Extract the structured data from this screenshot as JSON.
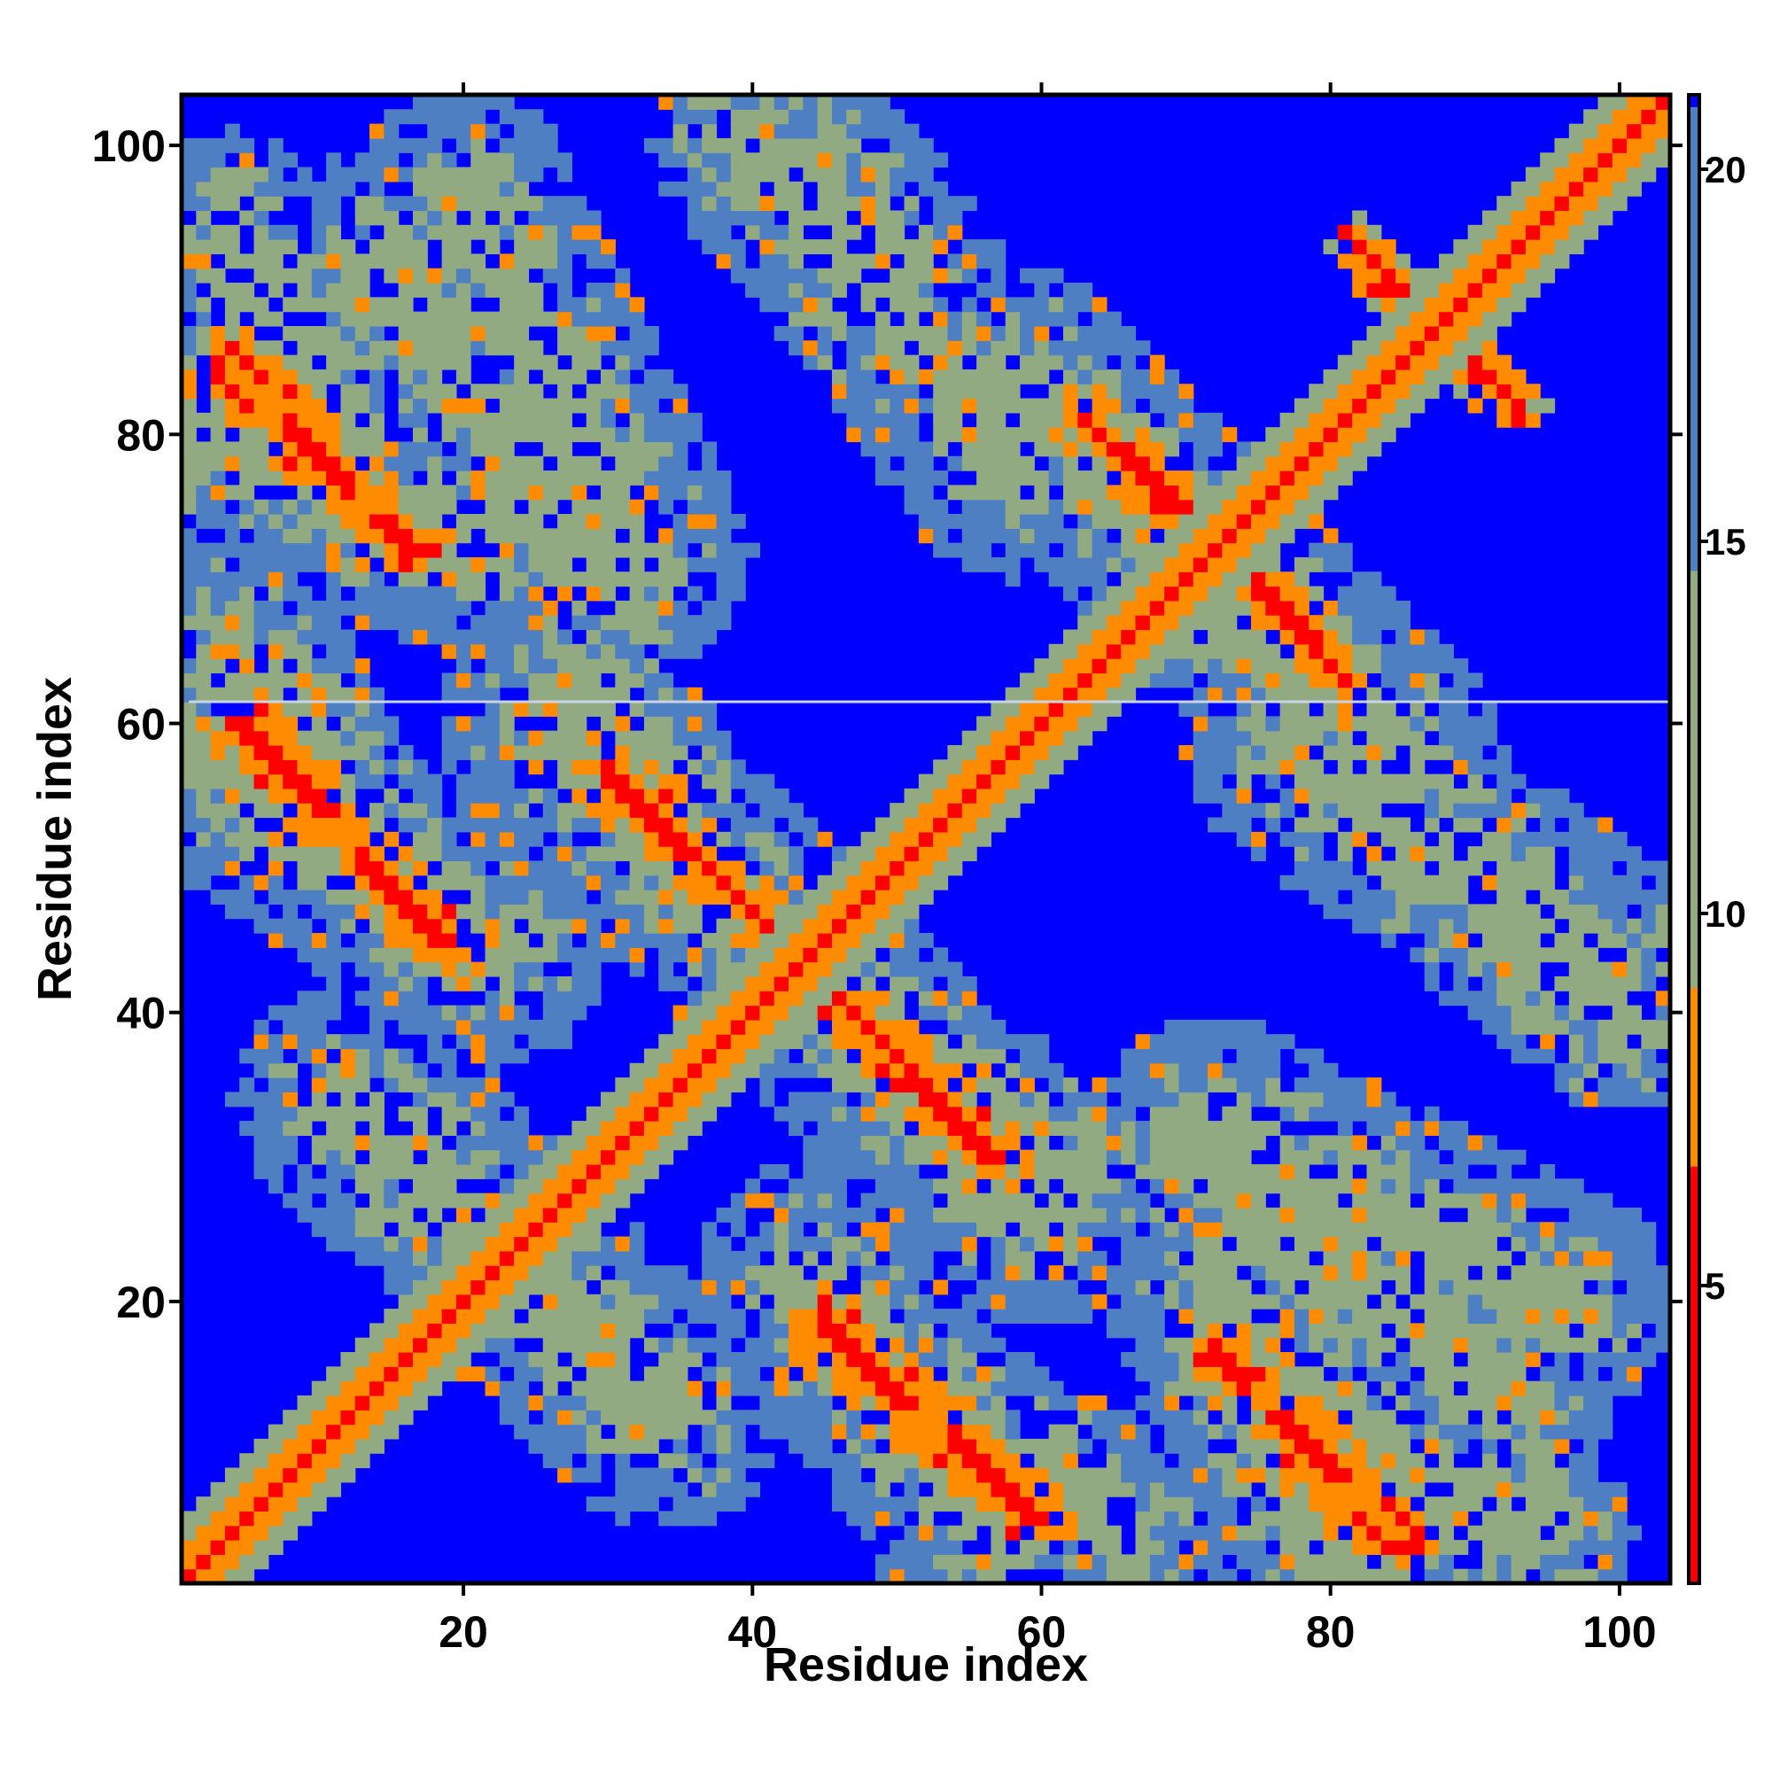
{
  "chart_data": {
    "type": "heatmap",
    "title": "",
    "xlabel": "Residue index",
    "ylabel": "Residue index",
    "n_residues": 103,
    "xlim": [
      1,
      103
    ],
    "ylim": [
      1,
      103
    ],
    "x_ticks": [
      20,
      40,
      60,
      80,
      100
    ],
    "y_ticks": [
      20,
      40,
      60,
      80,
      100
    ],
    "colorbar": {
      "ticks": [
        5,
        10,
        15,
        20
      ],
      "range": [
        1,
        21
      ],
      "placement": "right",
      "colors": [
        "#ff0000",
        "#ff8c00",
        "#92aa82",
        "#4f7fc3",
        "#0000ff"
      ]
    },
    "background_value": 21,
    "diagonal": {
      "value": 1.5,
      "band": 0.9
    },
    "near_diagonal": {
      "value": 6.5,
      "max_offset": 4
    },
    "features": [
      {
        "from": [
          3,
          84
        ],
        "to": [
          17,
          72
        ],
        "value": 6.5,
        "width": 2.5
      },
      {
        "from": [
          5,
          60
        ],
        "to": [
          19,
          45
        ],
        "value": 6.5,
        "width": 2.5
      },
      {
        "from": [
          30,
          56
        ],
        "to": [
          43,
          44
        ],
        "value": 6.5,
        "width": 2.5
      },
      {
        "from": [
          43,
          44
        ],
        "to": [
          57,
          30
        ],
        "value": 6.5,
        "width": 2.5
      },
      {
        "from": [
          45,
          18
        ],
        "to": [
          59,
          5
        ],
        "value": 6.5,
        "width": 2.5
      },
      {
        "from": [
          72,
          16
        ],
        "to": [
          86,
          4
        ],
        "value": 6.5,
        "width": 2.5
      },
      {
        "from": [
          63,
          81
        ],
        "to": [
          79,
          66
        ],
        "value": 6.5,
        "width": 2.5
      },
      {
        "from": [
          82,
          93
        ],
        "to": [
          90,
          84
        ],
        "value": 6.5,
        "width": 2.0
      },
      {
        "from": [
          2,
          80
        ],
        "to": [
          22,
          72
        ],
        "value": 12.0,
        "width": 8
      },
      {
        "from": [
          2,
          58
        ],
        "to": [
          22,
          44
        ],
        "value": 12.0,
        "width": 8
      },
      {
        "from": [
          40,
          100
        ],
        "to": [
          50,
          88
        ],
        "value": 12.0,
        "width": 7
      },
      {
        "from": [
          28,
          62
        ],
        "to": [
          38,
          48
        ],
        "value": 12.0,
        "width": 7
      },
      {
        "from": [
          58,
          84
        ],
        "to": [
          72,
          70
        ],
        "value": 12.0,
        "width": 8
      },
      {
        "from": [
          78,
          58
        ],
        "to": [
          98,
          44
        ],
        "value": 12.0,
        "width": 8
      },
      {
        "from": [
          46,
          40
        ],
        "to": [
          60,
          26
        ],
        "value": 12.0,
        "width": 8
      },
      {
        "from": [
          72,
          32
        ],
        "to": [
          96,
          20
        ],
        "value": 12.0,
        "width": 8
      },
      {
        "from": [
          20,
          26
        ],
        "to": [
          34,
          12
        ],
        "value": 12.0,
        "width": 8
      },
      {
        "from": [
          52,
          12
        ],
        "to": [
          66,
          4
        ],
        "value": 12.0,
        "width": 7
      },
      {
        "from": [
          74,
          14
        ],
        "to": [
          94,
          4
        ],
        "value": 12.0,
        "width": 7
      },
      {
        "from": [
          14,
          92
        ],
        "to": [
          30,
          70
        ],
        "value": 12.0,
        "width": 8
      }
    ],
    "missing_row": 62,
    "noise": 0.18
  }
}
